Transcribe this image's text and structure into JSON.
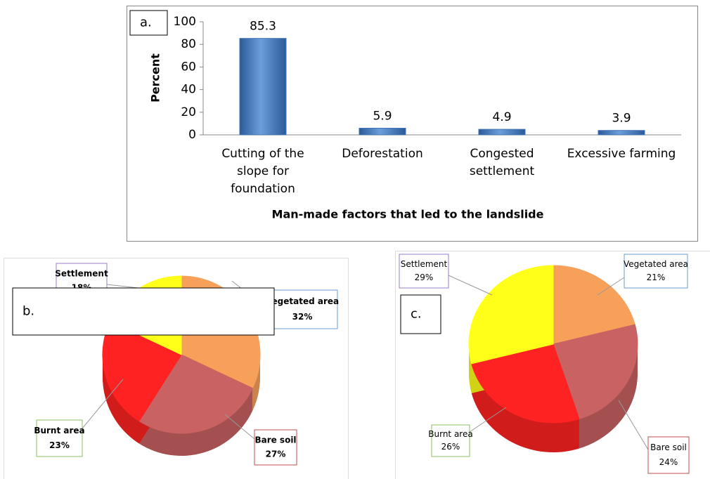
{
  "chart_data": [
    {
      "type": "bar",
      "label": "a.",
      "y_label": "Percent",
      "x_label": "Man-made factors that led to the landslide",
      "categories": [
        "Cutting of the slope for foundation",
        "Deforestation",
        "Congested settlement",
        "Excessive farming"
      ],
      "values": [
        85.3,
        5.9,
        4.9,
        3.9
      ],
      "color": "#3f74b8",
      "ylim": [
        0,
        100
      ],
      "yticks": [
        0,
        20,
        40,
        60,
        80,
        100
      ],
      "grid": false
    },
    {
      "type": "pie",
      "label": "b.",
      "categories": [
        "Vegetated area",
        "Bare soil",
        "Burnt area",
        "Settlement"
      ],
      "values": [
        32,
        27,
        23,
        18
      ],
      "value_labels": [
        "32%",
        "27%",
        "23%",
        "18%"
      ],
      "colors": [
        "#f6a05a",
        "#c96262",
        "#ff2222",
        "#ffff1a"
      ]
    },
    {
      "type": "pie",
      "label": "c.",
      "categories": [
        "Vegetated area",
        "Bare soil",
        "Burnt area",
        "Settlement"
      ],
      "values": [
        21,
        24,
        26,
        29
      ],
      "value_labels": [
        "21%",
        "24%",
        "26%",
        "29%"
      ],
      "colors": [
        "#f6a05a",
        "#c96262",
        "#ff2222",
        "#ffff1a"
      ]
    }
  ]
}
